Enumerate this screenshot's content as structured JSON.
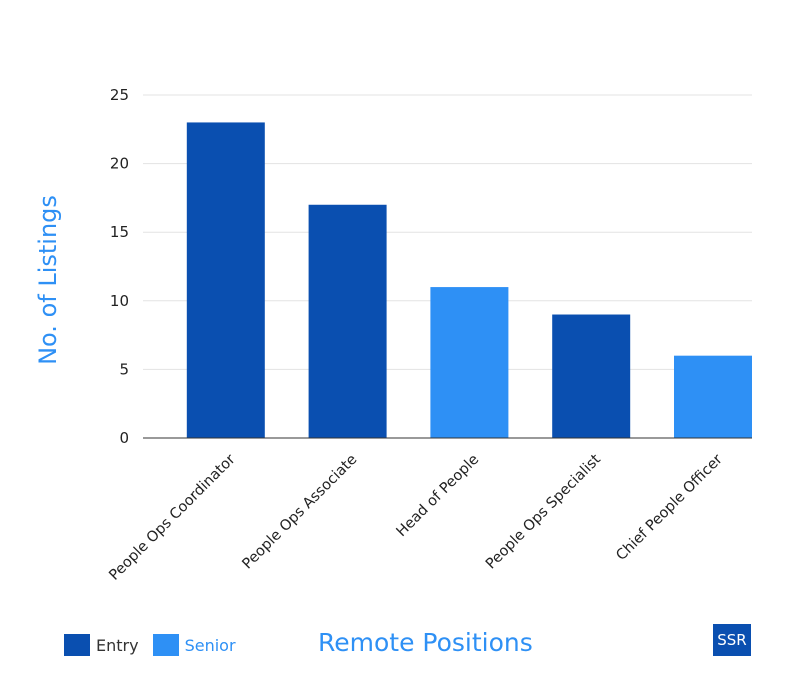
{
  "colors": {
    "entry": "#0a4fb0",
    "senior": "#2e90f5",
    "title": "#2e90f5",
    "grid": "#e3e3e3",
    "axis": "#333333"
  },
  "legend": [
    {
      "label": "Entry",
      "color_key": "entry"
    },
    {
      "label": "Senior",
      "color_key": "senior"
    }
  ],
  "chart_data": {
    "type": "bar",
    "title": "Remote Positions",
    "xlabel": "",
    "ylabel": "No. of Listings",
    "ylim": [
      0,
      25
    ],
    "yticks": [
      0,
      5,
      10,
      15,
      20,
      25
    ],
    "grid": true,
    "legend_position": "bottom-left",
    "categories": [
      "People Ops Coordinator",
      "People Ops Associate",
      "Head of People",
      "People Ops Specialist",
      "Chief People Officer"
    ],
    "values": [
      23,
      17,
      11,
      9,
      6
    ],
    "levels": [
      "Entry",
      "Entry",
      "Senior",
      "Entry",
      "Senior"
    ]
  },
  "logo": {
    "text": "SSR",
    "color": "#0a4fb0"
  }
}
